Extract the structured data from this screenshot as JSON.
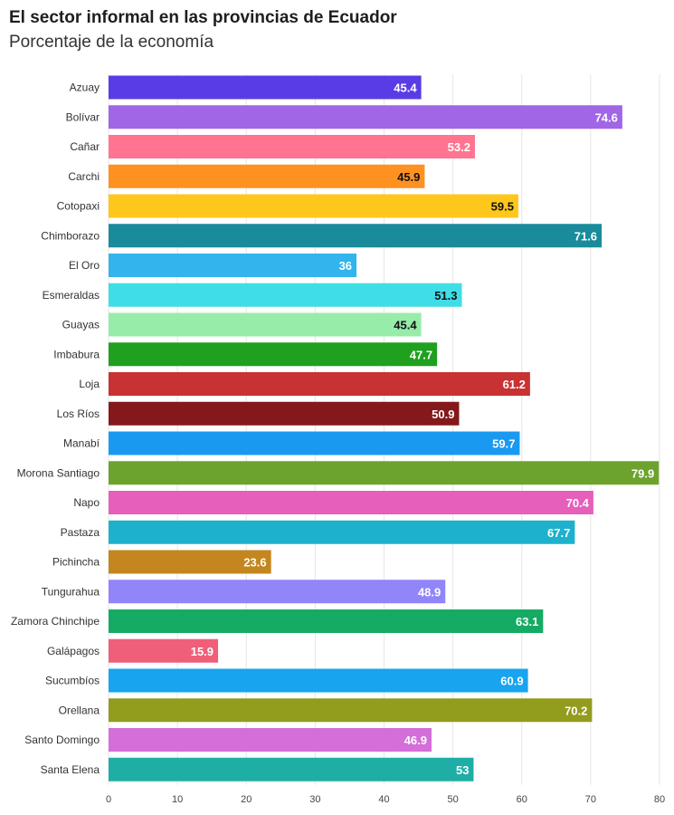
{
  "header": {
    "title": "El sector informal en las provincias de Ecuador",
    "subtitle": "Porcentaje de la economía"
  },
  "chart_data": {
    "type": "bar",
    "orientation": "horizontal",
    "title": "El sector informal en las provincias de Ecuador",
    "subtitle": "Porcentaje de la economía",
    "xlabel": "",
    "ylabel": "",
    "xlim": [
      0,
      80
    ],
    "x_ticks": [
      0,
      10,
      20,
      30,
      40,
      50,
      60,
      70,
      80
    ],
    "grid": true,
    "categories": [
      "Azuay",
      "Bolívar",
      "Cañar",
      "Carchi",
      "Cotopaxi",
      "Chimborazo",
      "El Oro",
      "Esmeraldas",
      "Guayas",
      "Imbabura",
      "Loja",
      "Los Ríos",
      "Manabí",
      "Morona Santiago",
      "Napo",
      "Pastaza",
      "Pichincha",
      "Tungurahua",
      "Zamora Chinchipe",
      "Galápagos",
      "Sucumbíos",
      "Orellana",
      "Santo Domingo",
      "Santa Elena"
    ],
    "values": [
      45.4,
      74.6,
      53.2,
      45.9,
      59.5,
      71.6,
      36,
      51.3,
      45.4,
      47.7,
      61.2,
      50.9,
      59.7,
      79.9,
      70.4,
      67.7,
      23.6,
      48.9,
      63.1,
      15.9,
      60.9,
      70.2,
      46.9,
      53
    ],
    "value_labels": [
      "45.4",
      "74.6",
      "53.2",
      "45.9",
      "59.5",
      "71.6",
      "36",
      "51.3",
      "45.4",
      "47.7",
      "61.2",
      "50.9",
      "59.7",
      "79.9",
      "70.4",
      "67.7",
      "23.6",
      "48.9",
      "63.1",
      "15.9",
      "60.9",
      "70.2",
      "46.9",
      "53"
    ],
    "colors": [
      "#5a3ce6",
      "#a066e6",
      "#ff7490",
      "#ff9121",
      "#ffc61c",
      "#1a8b9b",
      "#33b4ec",
      "#3fdde6",
      "#98ecaa",
      "#1fa01f",
      "#c83232",
      "#84181a",
      "#199af0",
      "#6ca32d",
      "#e65fbb",
      "#1db1cd",
      "#c4861f",
      "#9185f9",
      "#16ab64",
      "#ef5f79",
      "#18a4ef",
      "#929c1d",
      "#d46ed9",
      "#1eaea6"
    ],
    "label_colors": [
      "#ffffff",
      "#ffffff",
      "#ffffff",
      "#111111",
      "#111111",
      "#ffffff",
      "#ffffff",
      "#111111",
      "#111111",
      "#ffffff",
      "#ffffff",
      "#ffffff",
      "#ffffff",
      "#ffffff",
      "#ffffff",
      "#ffffff",
      "#ffffff",
      "#ffffff",
      "#ffffff",
      "#ffffff",
      "#ffffff",
      "#ffffff",
      "#ffffff",
      "#ffffff"
    ]
  }
}
